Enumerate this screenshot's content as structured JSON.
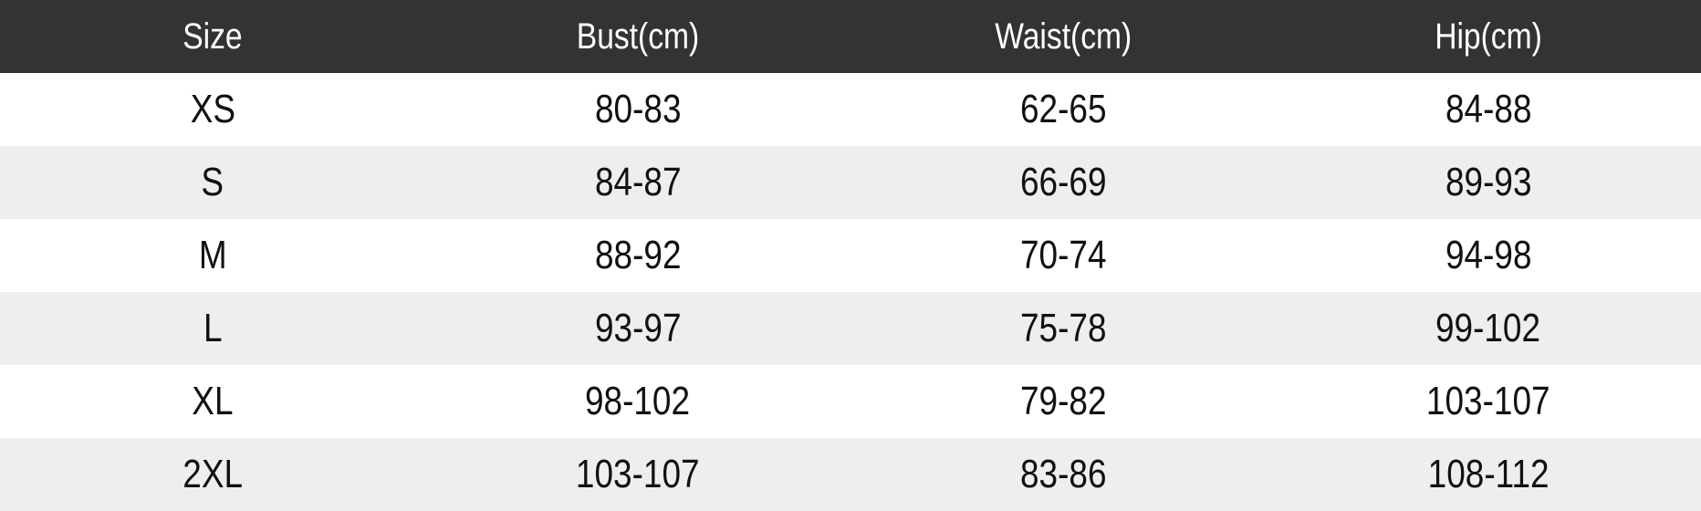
{
  "colors": {
    "header_bg": "#333333",
    "header_text": "#ffffff",
    "row_bg": "#ffffff",
    "row_alt_bg": "#eeeeee",
    "body_text": "#111111"
  },
  "chart_data": {
    "type": "table",
    "columns": [
      "Size",
      "Bust(cm)",
      "Waist(cm)",
      "Hip(cm)"
    ],
    "rows": [
      [
        "XS",
        "80-83",
        "62-65",
        "84-88"
      ],
      [
        "S",
        "84-87",
        "66-69",
        "89-93"
      ],
      [
        "M",
        "88-92",
        "70-74",
        "94-98"
      ],
      [
        "L",
        "93-97",
        "75-78",
        "99-102"
      ],
      [
        "XL",
        "98-102",
        "79-82",
        "103-107"
      ],
      [
        "2XL",
        "103-107",
        "83-86",
        "108-112"
      ]
    ]
  }
}
